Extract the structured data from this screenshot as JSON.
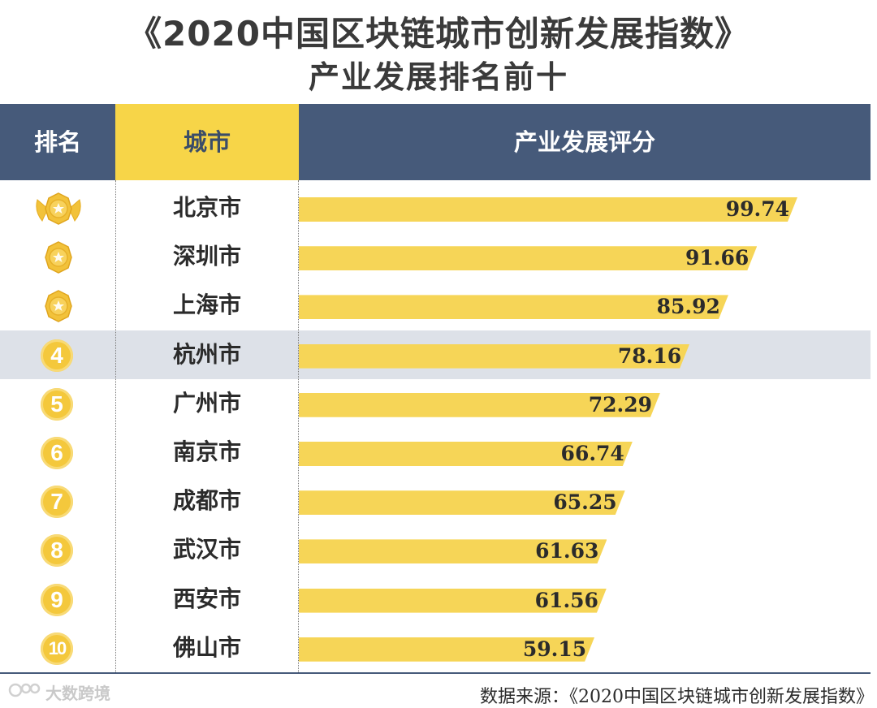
{
  "title": {
    "line1": "《2020中国区块链城市创新发展指数》",
    "line2": "产业发展排名前十"
  },
  "headers": {
    "rank": "排名",
    "city": "城市",
    "score": "产业发展评分"
  },
  "colors": {
    "header_bg": "#465a7a",
    "city_header_bg": "#f7d548",
    "bar": "#f6d557",
    "highlight_row": "#dde1e8",
    "badge": "#f4c83c"
  },
  "chart_data": {
    "type": "bar",
    "orientation": "horizontal",
    "categories": [
      "北京市",
      "深圳市",
      "上海市",
      "杭州市",
      "广州市",
      "南京市",
      "成都市",
      "武汉市",
      "西安市",
      "佛山市"
    ],
    "ranks": [
      "1",
      "2",
      "3",
      "4",
      "5",
      "6",
      "7",
      "8",
      "9",
      "10"
    ],
    "values": [
      99.74,
      91.66,
      85.92,
      78.16,
      72.29,
      66.74,
      65.25,
      61.63,
      61.56,
      59.15
    ],
    "value_labels": [
      "99.74",
      "91.66",
      "85.92",
      "78.16",
      "72.29",
      "66.74",
      "65.25",
      "61.63",
      "61.56",
      "59.15"
    ],
    "medal_ranks": [
      1,
      2,
      3
    ],
    "highlighted_rank": 4,
    "title": "产业发展排名前十",
    "xlabel": "产业发展评分",
    "ylabel": "城市"
  },
  "watermark": "大数跨境",
  "source": "数据来源：《2020中国区块链城市创新发展指数》"
}
